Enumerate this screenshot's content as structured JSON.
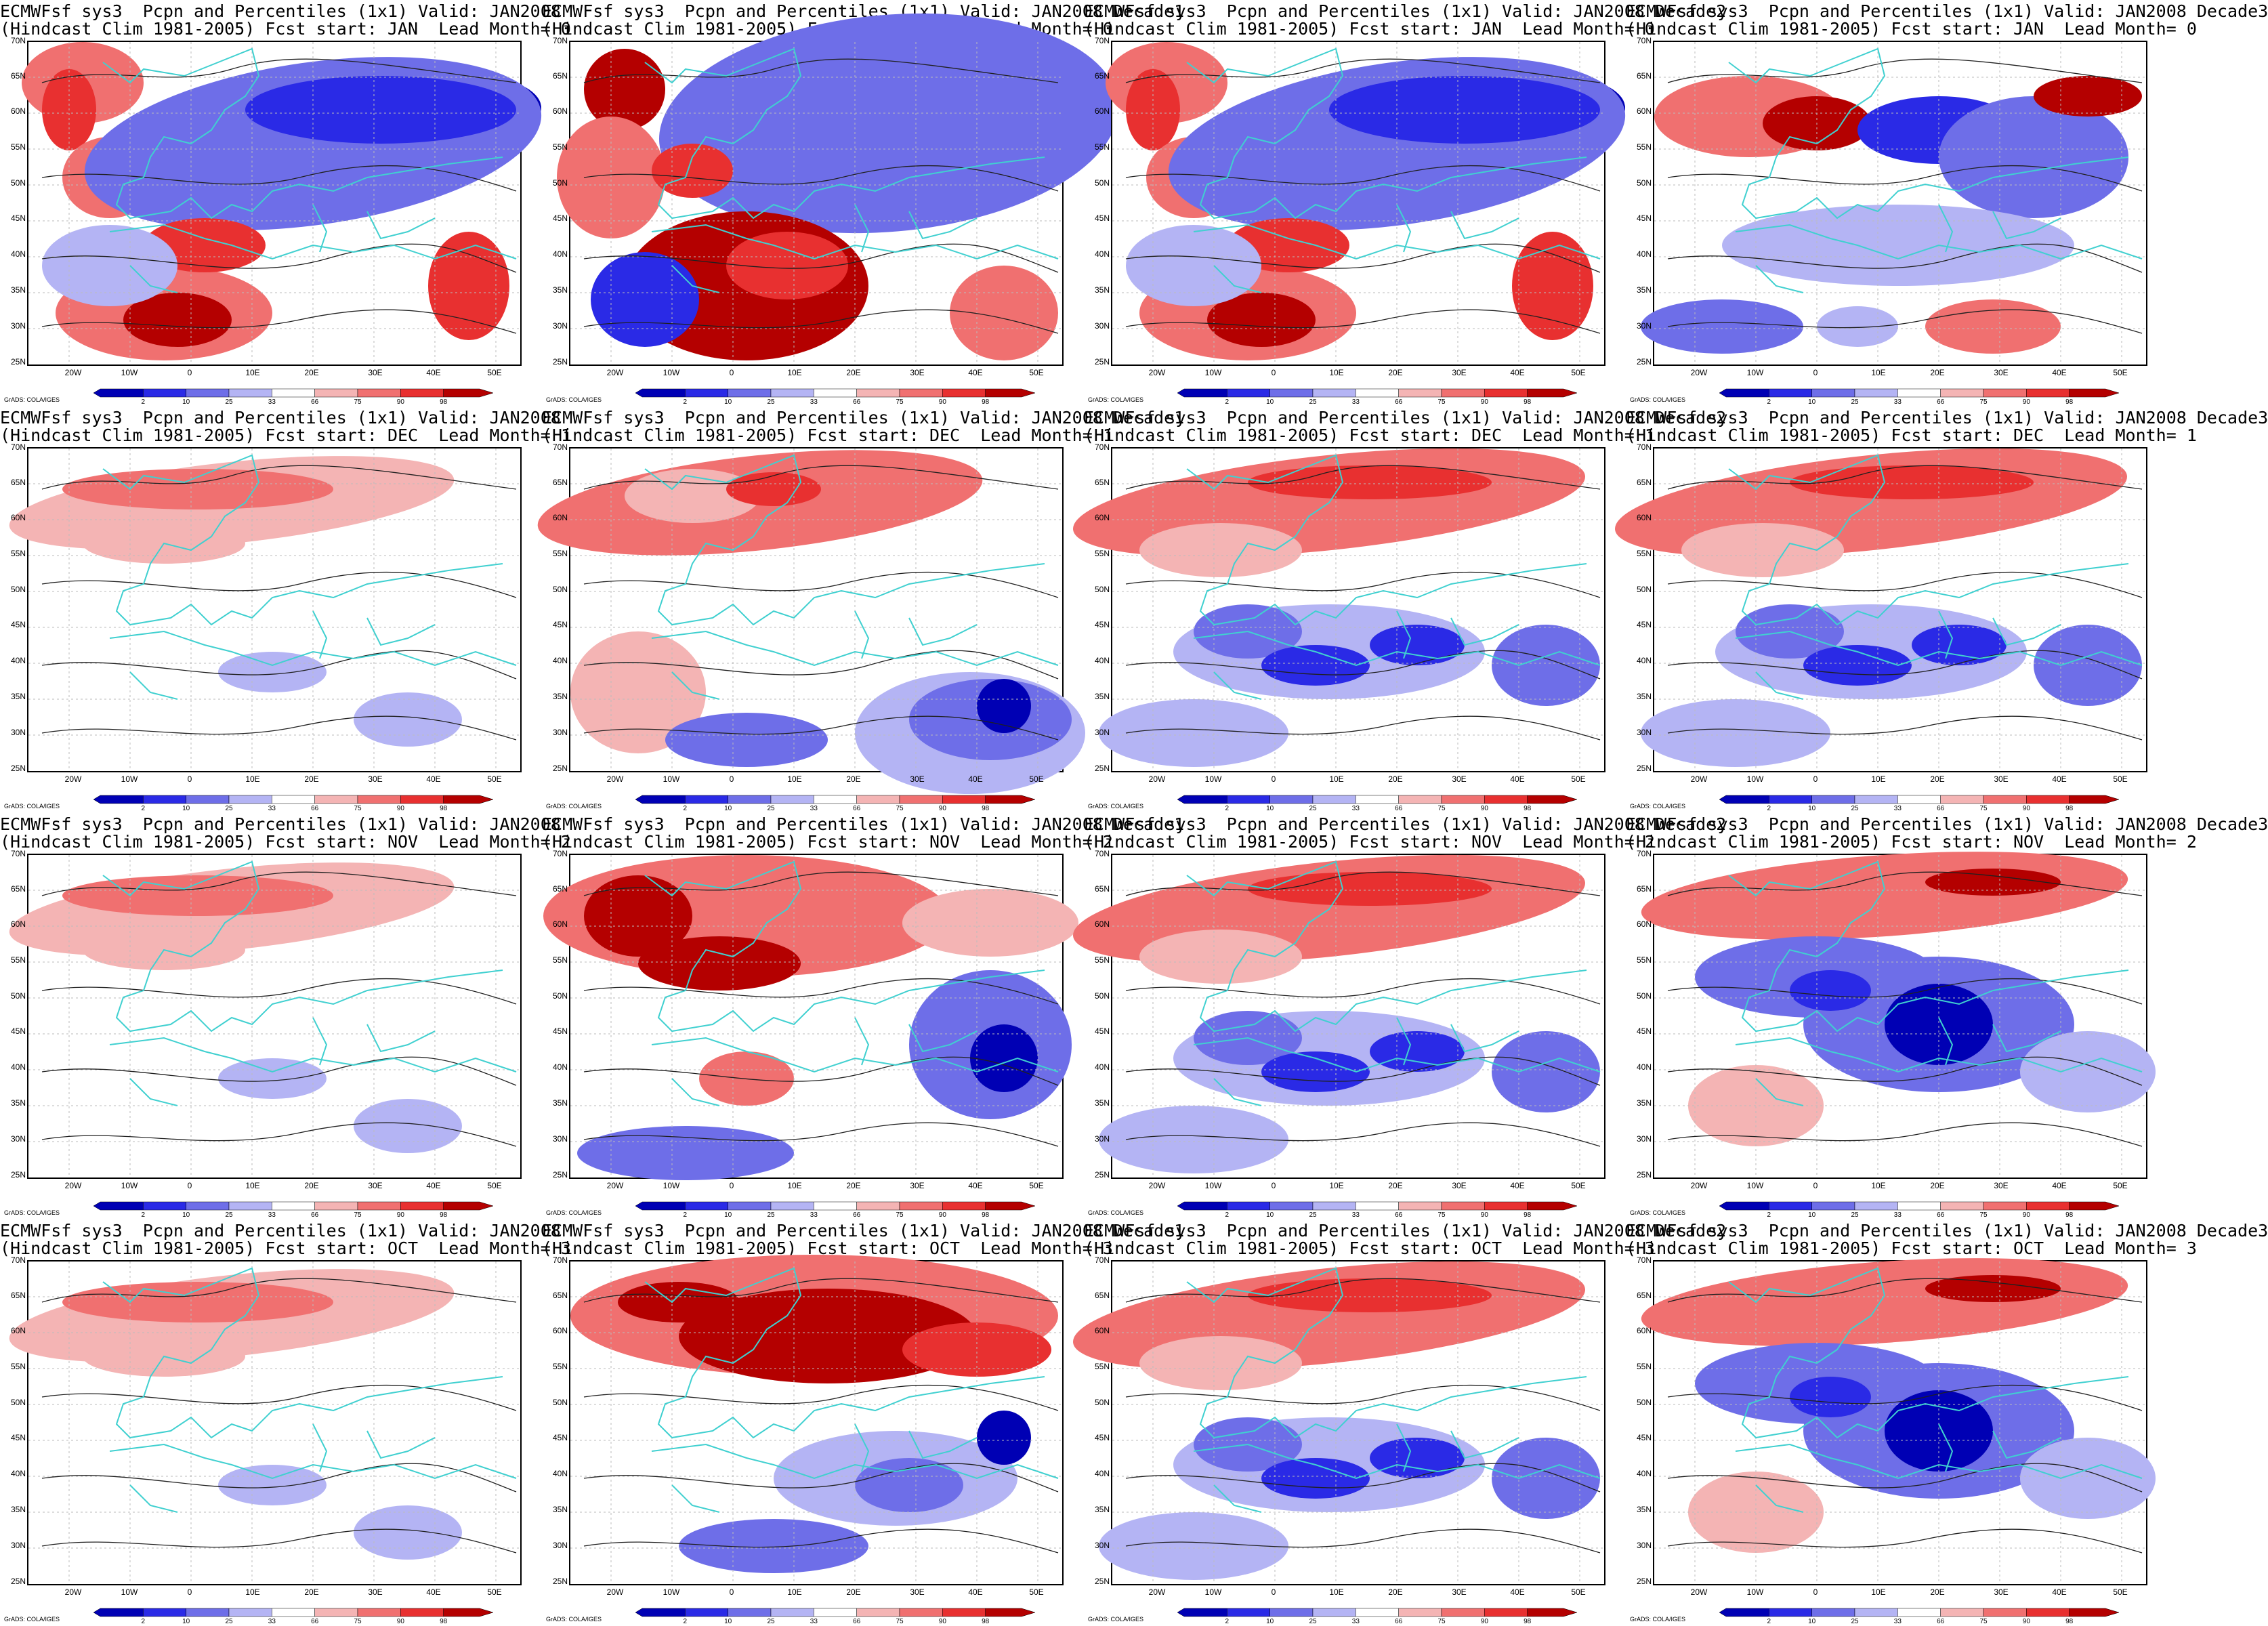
{
  "lat_labels": [
    "70N",
    "65N",
    "60N",
    "55N",
    "50N",
    "45N",
    "40N",
    "35N",
    "30N",
    "25N"
  ],
  "lon_labels": [
    "20W",
    "10W",
    "0",
    "10E",
    "20E",
    "30E",
    "40E",
    "50E"
  ],
  "colorbar": {
    "labels": [
      "2",
      "10",
      "25",
      "33",
      "66",
      "75",
      "90",
      "98"
    ],
    "colors": [
      "#0000b4",
      "#2a2ae6",
      "#6e6ee8",
      "#b4b4f4",
      "#ffffff",
      "#f4b4b4",
      "#f07070",
      "#e83030",
      "#b40000"
    ]
  },
  "credit": "GrADS: COLA/IGES",
  "colors": {
    "coast": "#40d0d0",
    "contour": "#202020"
  },
  "panels": [
    {
      "t1": "ECMWFsf sys3  Pcpn and Percentiles (1x1) Valid: JAN2008",
      "t2": "(Hindcast Clim 1981-2005) Fcst start: JAN  Lead Month= 0",
      "pattern": "blue_north_strong"
    },
    {
      "t1": "ECMWFsf sys3  Pcpn and Percentiles (1x1) Valid: JAN2008 Decade1",
      "t2": "(Hindcast Clim 1981-2005) Fcst start: JAN  Lead Month= 0",
      "pattern": "blue_north_extreme"
    },
    {
      "t1": "ECMWFsf sys3  Pcpn and Percentiles (1x1) Valid: JAN2008 Decade2",
      "t2": "(Hindcast Clim 1981-2005) Fcst start: JAN  Lead Month= 0",
      "pattern": "blue_north_strong"
    },
    {
      "t1": "ECMWFsf sys3  Pcpn and Percentiles (1x1) Valid: JAN2008 Decade3",
      "t2": "(Hindcast Clim 1981-2005) Fcst start: JAN  Lead Month= 0",
      "pattern": "mixed_band"
    },
    {
      "t1": "ECMWFsf sys3  Pcpn and Percentiles (1x1) Valid: JAN2008",
      "t2": "(Hindcast Clim 1981-2005) Fcst start: DEC  Lead Month= 1",
      "pattern": "red_north_light"
    },
    {
      "t1": "ECMWFsf sys3  Pcpn and Percentiles (1x1) Valid: JAN2008 Decade1",
      "t2": "(Hindcast Clim 1981-2005) Fcst start: DEC  Lead Month= 1",
      "pattern": "red_north_blue_se"
    },
    {
      "t1": "ECMWFsf sys3  Pcpn and Percentiles (1x1) Valid: JAN2008 Decade2",
      "t2": "(Hindcast Clim 1981-2005) Fcst start: DEC  Lead Month= 1",
      "pattern": "red_north_blue_south"
    },
    {
      "t1": "ECMWFsf sys3  Pcpn and Percentiles (1x1) Valid: JAN2008 Decade3",
      "t2": "(Hindcast Clim 1981-2005) Fcst start: DEC  Lead Month= 1",
      "pattern": "red_north_blue_south"
    },
    {
      "t1": "ECMWFsf sys3  Pcpn and Percentiles (1x1) Valid: JAN2008",
      "t2": "(Hindcast Clim 1981-2005) Fcst start: NOV  Lead Month= 2",
      "pattern": "red_north_light"
    },
    {
      "t1": "ECMWFsf sys3  Pcpn and Percentiles (1x1) Valid: JAN2008 Decade1",
      "t2": "(Hindcast Clim 1981-2005) Fcst start: NOV  Lead Month= 2",
      "pattern": "red_north_strong_blue_se"
    },
    {
      "t1": "ECMWFsf sys3  Pcpn and Percentiles (1x1) Valid: JAN2008 Decade2",
      "t2": "(Hindcast Clim 1981-2005) Fcst start: NOV  Lead Month= 2",
      "pattern": "red_north_blue_south"
    },
    {
      "t1": "ECMWFsf sys3  Pcpn and Percentiles (1x1) Valid: JAN2008 Decade3",
      "t2": "(Hindcast Clim 1981-2005) Fcst start: NOV  Lead Month= 2",
      "pattern": "red_north_blue_center"
    },
    {
      "t1": "ECMWFsf sys3  Pcpn and Percentiles (1x1) Valid: JAN2008",
      "t2": "(Hindcast Clim 1981-2005) Fcst start: OCT  Lead Month= 3",
      "pattern": "red_north_light"
    },
    {
      "t1": "ECMWFsf sys3  Pcpn and Percentiles (1x1) Valid: JAN2008 Decade1",
      "t2": "(Hindcast Clim 1981-2005) Fcst start: OCT  Lead Month= 3",
      "pattern": "red_north_extreme"
    },
    {
      "t1": "ECMWFsf sys3  Pcpn and Percentiles (1x1) Valid: JAN2008 Decade2",
      "t2": "(Hindcast Clim 1981-2005) Fcst start: OCT  Lead Month= 3",
      "pattern": "red_north_blue_south"
    },
    {
      "t1": "ECMWFsf sys3  Pcpn and Percentiles (1x1) Valid: JAN2008 Decade3",
      "t2": "(Hindcast Clim 1981-2005) Fcst start: OCT  Lead Month= 3",
      "pattern": "red_north_blue_center"
    }
  ]
}
